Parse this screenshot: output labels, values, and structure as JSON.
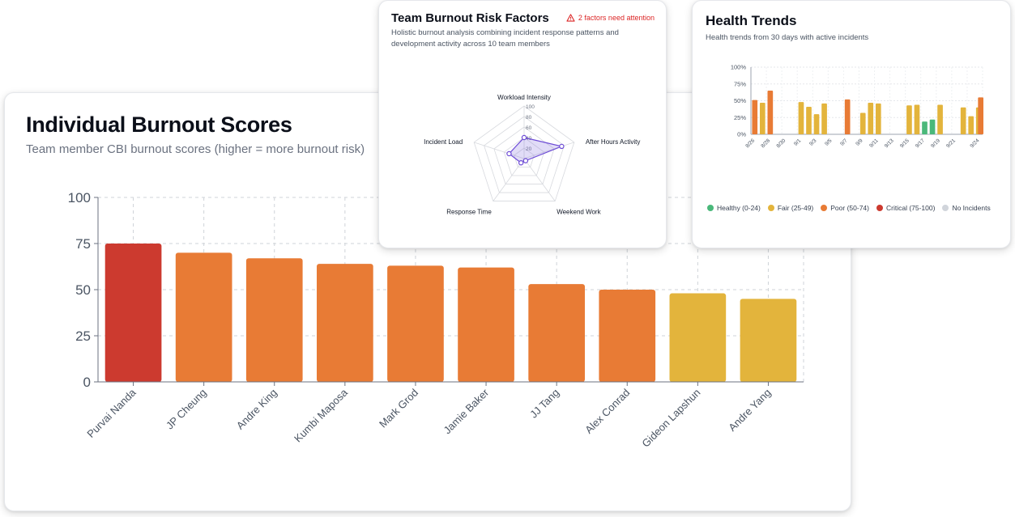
{
  "colors": {
    "critical": "#cc3a2f",
    "poor": "#e87b35",
    "fair": "#e3b43c",
    "healthy": "#4ab87a",
    "none": "#d1d5db",
    "radar": "#6d4bd6",
    "radar_fill": "rgba(120, 95, 220, 0.22)",
    "warning": "#dc2626"
  },
  "burnout": {
    "title": "Individual Burnout Scores",
    "subtitle": "Team member CBI burnout scores (higher = more burnout risk)"
  },
  "risk": {
    "title": "Team Burnout Risk Factors",
    "warning": "2 factors need attention",
    "subtitle": "Holistic burnout analysis combining incident response patterns and development activity across 10 team members"
  },
  "health": {
    "title": "Health Trends",
    "subtitle": "Health trends from 30 days with active incidents",
    "legend": [
      {
        "label": "Healthy (0-24)",
        "color": "#4ab87a"
      },
      {
        "label": "Fair (25-49)",
        "color": "#e3b43c"
      },
      {
        "label": "Poor (50-74)",
        "color": "#e87b35"
      },
      {
        "label": "Critical (75-100)",
        "color": "#cc3a2f"
      },
      {
        "label": "No Incidents",
        "color": "#d1d5db"
      }
    ]
  },
  "chart_data": [
    {
      "type": "bar",
      "title": "Individual Burnout Scores",
      "categories": [
        "Purvai Nanda",
        "JP Cheung",
        "Andre King",
        "Kumbi Maposa",
        "Mark Grod",
        "Jamie Baker",
        "JJ Tang",
        "Alex Conrad",
        "Gideon Lapshun",
        "Andre Yang"
      ],
      "values": [
        75,
        70,
        67,
        64,
        63,
        62,
        53,
        50,
        48,
        45
      ],
      "status": [
        "critical",
        "poor",
        "poor",
        "poor",
        "poor",
        "poor",
        "poor",
        "poor",
        "fair",
        "fair"
      ],
      "ylim": [
        0,
        100
      ],
      "yticks": [
        0,
        25,
        50,
        75,
        100
      ],
      "grid": true
    },
    {
      "type": "radar",
      "title": "Team Burnout Risk Factors",
      "axes": [
        "Workload Intensity",
        "After Hours Activity",
        "Weekend Work",
        "Response Time",
        "Incident Load"
      ],
      "values": [
        40,
        75,
        5,
        10,
        30
      ],
      "rlim": [
        0,
        100
      ],
      "rticks": [
        20,
        40,
        60,
        80,
        100
      ]
    },
    {
      "type": "bar",
      "title": "Health Trends",
      "x": [
        "8/26",
        "8/27",
        "8/28",
        "8/29",
        "8/30",
        "8/31",
        "9/1",
        "9/2",
        "9/3",
        "9/4",
        "9/5",
        "9/6",
        "9/7",
        "9/8",
        "9/9",
        "9/10",
        "9/11",
        "9/12",
        "9/13",
        "9/14",
        "9/15",
        "9/16",
        "9/17",
        "9/18",
        "9/19",
        "9/20",
        "9/21",
        "9/22",
        "9/23",
        "9/24"
      ],
      "x_tick_labels": [
        "8/26",
        "8/28",
        "8/30",
        "9/1",
        "9/3",
        "9/5",
        "9/7",
        "9/9",
        "9/11",
        "9/13",
        "9/15",
        "9/17",
        "9/19",
        "9/21",
        "9/24"
      ],
      "values": [
        51,
        47,
        65,
        null,
        null,
        null,
        48,
        41,
        30,
        46,
        null,
        null,
        52,
        null,
        32,
        47,
        46,
        null,
        null,
        null,
        43,
        44,
        19,
        22,
        44,
        null,
        null,
        40,
        27,
        40
      ],
      "extra_last": 55,
      "status": [
        "poor",
        "fair",
        "poor",
        null,
        null,
        null,
        "fair",
        "fair",
        "fair",
        "fair",
        null,
        null,
        "poor",
        null,
        "fair",
        "fair",
        "fair",
        null,
        null,
        null,
        "fair",
        "fair",
        "healthy",
        "healthy",
        "fair",
        null,
        null,
        "fair",
        "fair",
        "fair"
      ],
      "ylim": [
        0,
        100
      ],
      "yticks": [
        "0%",
        "25%",
        "50%",
        "75%",
        "100%"
      ]
    }
  ]
}
